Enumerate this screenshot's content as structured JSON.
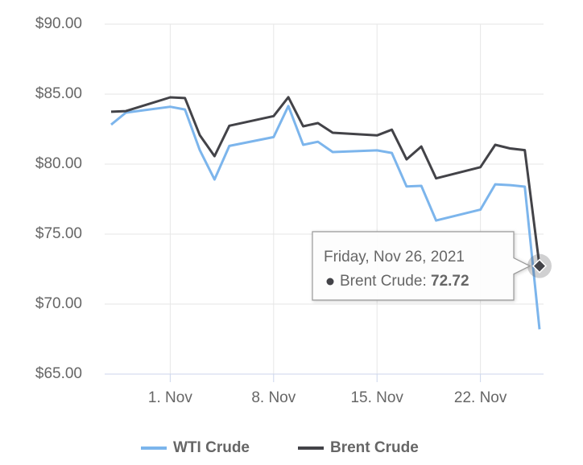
{
  "chart_data": {
    "type": "line",
    "x": [
      "2021-10-28",
      "2021-10-29",
      "2021-11-01",
      "2021-11-02",
      "2021-11-03",
      "2021-11-04",
      "2021-11-05",
      "2021-11-08",
      "2021-11-09",
      "2021-11-10",
      "2021-11-11",
      "2021-11-12",
      "2021-11-15",
      "2021-11-16",
      "2021-11-17",
      "2021-11-18",
      "2021-11-19",
      "2021-11-22",
      "2021-11-23",
      "2021-11-24",
      "2021-11-25",
      "2021-11-26"
    ],
    "series": [
      {
        "name": "WTI Crude",
        "color": "#7cb5ec",
        "values": [
          82.82,
          83.68,
          84.1,
          83.9,
          81.0,
          78.9,
          81.3,
          81.93,
          84.15,
          81.38,
          81.6,
          80.86,
          80.98,
          80.8,
          78.4,
          78.45,
          75.97,
          76.75,
          78.56,
          78.5,
          78.39,
          68.2
        ]
      },
      {
        "name": "Brent Crude",
        "color": "#434348",
        "values": [
          83.74,
          83.79,
          84.77,
          84.72,
          82.07,
          80.57,
          82.74,
          83.43,
          84.78,
          82.7,
          82.93,
          82.24,
          82.05,
          82.46,
          80.34,
          81.26,
          78.98,
          79.78,
          81.38,
          81.12,
          81.0,
          72.72
        ]
      }
    ],
    "xlim": [
      "2021-10-28",
      "2021-11-26"
    ],
    "xticks": [
      {
        "value": "2021-11-01",
        "label": "1. Nov"
      },
      {
        "value": "2021-11-08",
        "label": "8. Nov"
      },
      {
        "value": "2021-11-15",
        "label": "15. Nov"
      },
      {
        "value": "2021-11-22",
        "label": "22. Nov"
      }
    ],
    "ylim": [
      65,
      90
    ],
    "yticks": [
      {
        "value": 65,
        "label": "$65.00"
      },
      {
        "value": 70,
        "label": "$70.00"
      },
      {
        "value": 75,
        "label": "$75.00"
      },
      {
        "value": 80,
        "label": "$80.00"
      },
      {
        "value": 85,
        "label": "$85.00"
      },
      {
        "value": 90,
        "label": "$90.00"
      }
    ],
    "grid": true,
    "legend": "bottom",
    "tooltip": {
      "header": "Friday, Nov 26, 2021",
      "series": 1,
      "index": 21
    }
  }
}
